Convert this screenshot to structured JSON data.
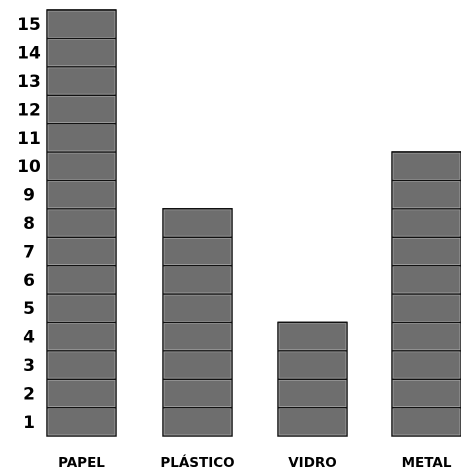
{
  "chart_data": {
    "type": "bar",
    "categories": [
      "PAPEL",
      "PLÁSTICO",
      "VIDRO",
      "METAL"
    ],
    "values": [
      15,
      8,
      4,
      10
    ],
    "y_ticks": [
      "1",
      "2",
      "3",
      "4",
      "5",
      "6",
      "7",
      "8",
      "9",
      "10",
      "11",
      "12",
      "13",
      "14",
      "15"
    ],
    "ylim": [
      0,
      15
    ],
    "grid": false,
    "legend": "none",
    "bar_style": "stacked unit blocks",
    "title": "",
    "xlabel": "",
    "ylabel": "",
    "colors": {
      "bar_fill": "#6e6e6e",
      "block_border": "#111111",
      "block_highlight": "#d8d8d8",
      "text": "#000000",
      "background": "#ffffff"
    }
  }
}
